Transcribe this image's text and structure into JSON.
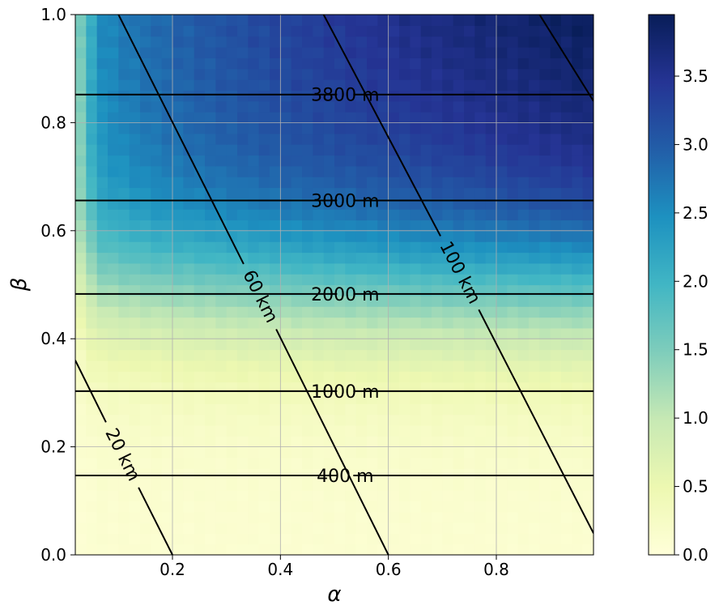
{
  "chart_data": {
    "type": "heatmap",
    "xlabel": "α",
    "ylabel": "β",
    "xlim": [
      0.02,
      0.98
    ],
    "ylim": [
      0.0,
      1.0
    ],
    "x_ticks": [
      "0.2",
      "0.4",
      "0.6",
      "0.8"
    ],
    "x_tick_values": [
      0.2,
      0.4,
      0.6,
      0.8
    ],
    "y_ticks": [
      "0.0",
      "0.2",
      "0.4",
      "0.6",
      "0.8",
      "1.0"
    ],
    "y_tick_values": [
      0.0,
      0.2,
      0.4,
      0.6,
      0.8,
      1.0
    ],
    "grid": true,
    "colormap": "YlGnBu",
    "colormap_stops": [
      "#ffffd9",
      "#edf8b1",
      "#c7e9b4",
      "#7fcdbb",
      "#41b6c4",
      "#1d91c0",
      "#225ea8",
      "#253494",
      "#081d58"
    ],
    "colorbar": {
      "range": [
        0.0,
        3.95
      ],
      "ticks": [
        "0.0",
        "0.5",
        "1.0",
        "1.5",
        "2.0",
        "2.5",
        "3.0",
        "3.5"
      ],
      "tick_values": [
        0.0,
        0.5,
        1.0,
        1.5,
        2.0,
        2.5,
        3.0,
        3.5
      ]
    },
    "grid_cells": {
      "nx": 48,
      "ny": 50
    },
    "horizontal_contours": [
      {
        "label": "400 m",
        "beta": 0.147,
        "label_alpha": 0.52
      },
      {
        "label": "1000 m",
        "beta": 0.303,
        "label_alpha": 0.52
      },
      {
        "label": "2000 m",
        "beta": 0.483,
        "label_alpha": 0.52
      },
      {
        "label": "3000 m",
        "beta": 0.656,
        "label_alpha": 0.52
      },
      {
        "label": "3800 m",
        "beta": 0.852,
        "label_alpha": 0.52
      }
    ],
    "diagonal_contours": [
      {
        "label": "20 km",
        "points": [
          [
            0.02,
            0.36
          ],
          [
            0.2,
            0.0
          ]
        ],
        "label_pos": [
          0.107,
          0.185
        ]
      },
      {
        "label": "60 km",
        "points": [
          [
            0.1,
            1.0
          ],
          [
            0.6,
            0.0
          ]
        ],
        "label_pos": [
          0.362,
          0.478
        ]
      },
      {
        "label": "100 km",
        "points": [
          [
            0.48,
            1.0
          ],
          [
            0.98,
            0.04
          ]
        ],
        "label_pos": [
          0.732,
          0.522
        ]
      },
      {
        "label": "",
        "points": [
          [
            0.88,
            1.0
          ],
          [
            0.98,
            0.84
          ]
        ],
        "label_pos": null
      }
    ],
    "contour_color": "#000000"
  }
}
